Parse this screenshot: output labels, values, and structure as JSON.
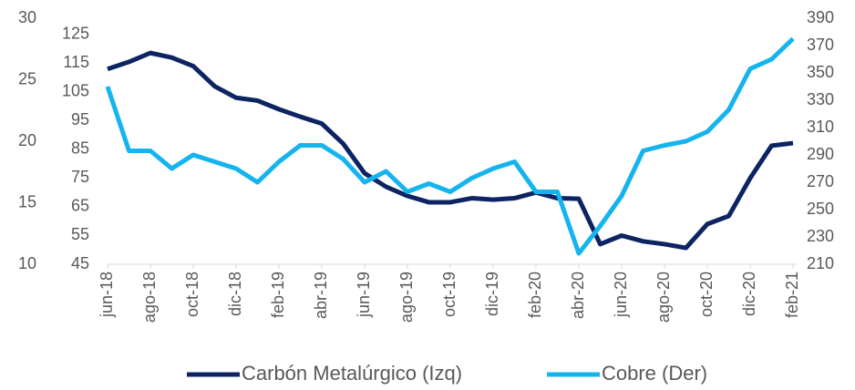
{
  "chart_data": {
    "type": "line",
    "categories": [
      "jun-18",
      null,
      "ago-18",
      null,
      "oct-18",
      null,
      "dic-18",
      null,
      "feb-19",
      null,
      "abr-19",
      null,
      "jun-19",
      null,
      "ago-19",
      null,
      "oct-19",
      null,
      "dic-19",
      null,
      "feb-20",
      null,
      "abr-20",
      null,
      "jun-20",
      null,
      "ago-20",
      null,
      "oct-20",
      null,
      "dic-20",
      null,
      "feb-21"
    ],
    "series": [
      {
        "name": "Carbón Metalúrgico (Izq)",
        "color": "#0c2461",
        "values": [
          113,
          115.5,
          118.6,
          117,
          114,
          107,
          103,
          102,
          99,
          96.4,
          94,
          87,
          76.7,
          72,
          68.8,
          66.6,
          66.6,
          68,
          67.5,
          68,
          70,
          68,
          67.8,
          52,
          55,
          53,
          52,
          50.7,
          59,
          61.8,
          75,
          86.3,
          87.2
        ]
      },
      {
        "name": "Cobre (Der)",
        "color": "#15b4ef",
        "axis": "y2",
        "values": [
          340,
          293,
          293,
          280,
          290,
          285,
          280,
          270,
          285,
          297,
          297,
          287,
          270,
          278,
          263,
          269,
          263,
          273,
          280,
          285,
          263,
          263,
          218,
          238,
          260,
          293,
          297,
          300,
          307,
          323,
          353,
          360,
          375
        ]
      }
    ],
    "ylim": [
      45,
      130.7
    ],
    "yticks": [
      45,
      55,
      65,
      75,
      85,
      95,
      105,
      115,
      125
    ],
    "y2lim": [
      210,
      390
    ],
    "y2ticks": [
      210,
      230,
      250,
      270,
      290,
      310,
      330,
      350,
      370,
      390
    ],
    "y3lim": [
      10,
      30
    ],
    "y3ticks": [
      10,
      15,
      20,
      25,
      30
    ],
    "legend": "bottom"
  }
}
